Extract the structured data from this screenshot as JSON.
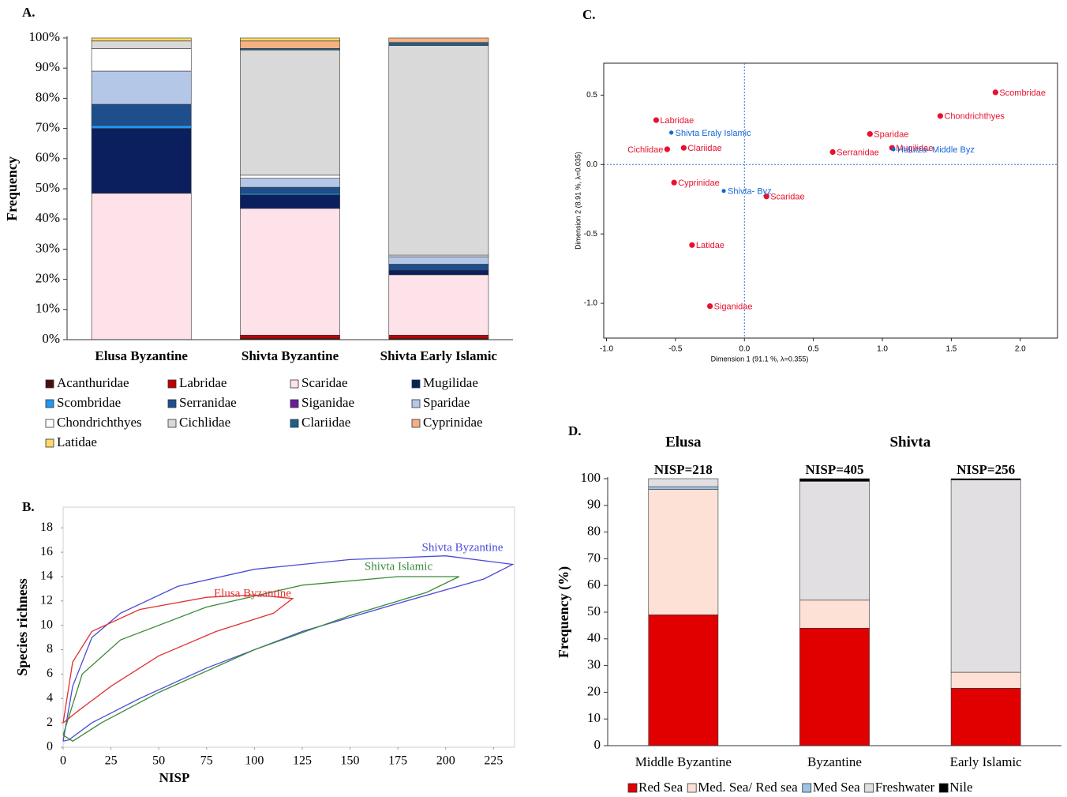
{
  "chart_data": [
    {
      "type": "bar",
      "stacked": true,
      "panel": "A.",
      "y_label": "Frequency",
      "categories": [
        "Elusa Byzantine",
        "Shivta Byzantine",
        "Shivta Early Islamic"
      ],
      "series": [
        {
          "name": "Acanthuridae",
          "color": "#4a0d0d",
          "values": [
            0,
            0.5,
            0.5
          ]
        },
        {
          "name": "Labridae",
          "color": "#c00000",
          "values": [
            0,
            1,
            1
          ]
        },
        {
          "name": "Scaridae",
          "color": "#fde2ea",
          "values": [
            48.5,
            42,
            20
          ]
        },
        {
          "name": "Mugilidae",
          "color": "#0b1f5e",
          "values": [
            21.5,
            4.5,
            1.5
          ]
        },
        {
          "name": "Scombridae",
          "color": "#2196f3",
          "values": [
            1,
            0.5,
            0
          ]
        },
        {
          "name": "Serranidae",
          "color": "#1f4e8c",
          "values": [
            7,
            2,
            2
          ]
        },
        {
          "name": "Siganidae",
          "color": "#6a1b9a",
          "values": [
            0,
            0,
            0
          ]
        },
        {
          "name": "Sparidae",
          "color": "#b4c7e7",
          "values": [
            11,
            3,
            2.5
          ]
        },
        {
          "name": "Chondrichthyes",
          "color": "#ffffff",
          "values": [
            7.5,
            1,
            0.5
          ]
        },
        {
          "name": "Cichlidae",
          "color": "#d9d9d9",
          "values": [
            2.5,
            41.5,
            69.5
          ]
        },
        {
          "name": "Clariidae",
          "color": "#1d5f8a",
          "values": [
            0,
            0.5,
            1
          ]
        },
        {
          "name": "Cyprinidae",
          "color": "#f4b183",
          "values": [
            0,
            2.5,
            1.5
          ]
        },
        {
          "name": "Latidae",
          "color": "#ffd966",
          "values": [
            1,
            1,
            0
          ]
        }
      ],
      "ylim": [
        0,
        100
      ],
      "yticks": [
        {
          "value": 0,
          "label": "0%"
        },
        {
          "value": 10,
          "label": "10%"
        },
        {
          "value": 20,
          "label": "20%"
        },
        {
          "value": 30,
          "label": "30%"
        },
        {
          "value": 40,
          "label": "40%"
        },
        {
          "value": 50,
          "label": "50%"
        },
        {
          "value": 60,
          "label": "60%"
        },
        {
          "value": 70,
          "label": "70%"
        },
        {
          "value": 80,
          "label": "80%"
        },
        {
          "value": 90,
          "label": "90%"
        },
        {
          "value": 100,
          "label": "100%"
        }
      ]
    },
    {
      "type": "line",
      "panel": "B.",
      "x_label": "NISP",
      "y_label": "Species richness",
      "xlim": [
        0,
        236
      ],
      "ylim": [
        0,
        19.7
      ],
      "xticks": [
        0,
        25,
        50,
        75,
        100,
        125,
        150,
        175,
        200,
        225
      ],
      "yticks": [
        0,
        2,
        4,
        6,
        8,
        10,
        12,
        14,
        16,
        18
      ],
      "series": [
        {
          "name": "Shivta Byzantine",
          "color": "#4a4ad6",
          "x": [
            0,
            5,
            15,
            30,
            60,
            100,
            150,
            200,
            235,
            220,
            175,
            125,
            75,
            40,
            15,
            3,
            0
          ],
          "values": [
            0.5,
            5,
            9,
            11,
            13.2,
            14.6,
            15.4,
            15.7,
            15,
            13.8,
            11.8,
            9.5,
            6.5,
            4,
            2,
            0.6,
            0.5
          ]
        },
        {
          "name": "Shivta Islamic",
          "color": "#3a8a3a",
          "x": [
            0,
            10,
            30,
            75,
            125,
            175,
            207,
            190,
            150,
            100,
            50,
            20,
            5,
            0
          ],
          "values": [
            1,
            6,
            8.8,
            11.5,
            13.3,
            14,
            14,
            12.7,
            10.8,
            8,
            4.5,
            2,
            0.5,
            1
          ]
        },
        {
          "name": "Elusa Byzantine",
          "color": "#e03030",
          "x": [
            0,
            5,
            15,
            40,
            75,
            100,
            120,
            110,
            80,
            50,
            25,
            8,
            0
          ],
          "values": [
            2,
            7,
            9.5,
            11.3,
            12.3,
            12.5,
            12.2,
            11,
            9.5,
            7.5,
            5,
            3,
            2
          ]
        }
      ]
    },
    {
      "type": "scatter",
      "panel": "C.",
      "x_label": "Dimension 1  (91.1 %, λ=0.355)",
      "y_label": "Dimension 2 (8.91 %, λ=0.035)",
      "xlim": [
        -1.02,
        2.27
      ],
      "ylim": [
        -1.25,
        0.73
      ],
      "xticks": [
        {
          "value": -1,
          "label": "-1.0"
        },
        -0.5,
        {
          "value": 0,
          "label": "0.0"
        },
        0.5,
        {
          "value": 1,
          "label": "1.0"
        },
        1.5,
        {
          "value": 2,
          "label": "2.0"
        }
      ],
      "yticks": [
        0.5,
        {
          "value": 0,
          "label": "0.0"
        },
        -0.5,
        {
          "value": -1,
          "label": "-1.0"
        }
      ],
      "zero_lines": true,
      "series": [
        {
          "color": "#e8112d",
          "labels": [
            "Scombridae",
            "Chondrichthyes",
            "Labridae",
            "Sparidae",
            "Mugilidae",
            "Cichlidae",
            "Clariidae",
            "Serranidae",
            "Cyprinidae",
            "Scaridae",
            "Latidae",
            "Siganidae"
          ],
          "x": [
            1.82,
            1.42,
            -0.64,
            0.91,
            1.07,
            -0.56,
            -0.44,
            0.64,
            -0.51,
            0.16,
            -0.38,
            -0.25
          ],
          "values": [
            0.52,
            0.35,
            0.32,
            0.22,
            0.12,
            0.11,
            0.12,
            0.09,
            -0.13,
            -0.23,
            -0.58,
            -1.02
          ]
        },
        {
          "color": "#1565d8",
          "labels": [
            "Shivta Eraly Islamic",
            "Halutza- Middle Byz",
            "Shivta- Byz"
          ],
          "x": [
            -0.53,
            1.08,
            -0.15
          ],
          "values": [
            0.23,
            0.11,
            -0.19
          ]
        }
      ]
    },
    {
      "type": "bar",
      "stacked": true,
      "panel": "D.",
      "y_label": "Frequency (%)",
      "groups": [
        {
          "label": "Elusa",
          "span": 1
        },
        {
          "label": "Shivta",
          "span": 2
        }
      ],
      "annotations": [
        "NISP=218",
        "NISP=405",
        "NISP=256"
      ],
      "categories": [
        "Middle Byzantine",
        "Byzantine",
        "Early Islamic"
      ],
      "series": [
        {
          "name": "Red Sea",
          "color": "#e00000",
          "values": [
            49,
            44,
            21.5
          ]
        },
        {
          "name": "Med. Sea/ Red sea",
          "color": "#fde0d6",
          "values": [
            47,
            10.5,
            6
          ]
        },
        {
          "name": "Med Sea",
          "color": "#9dc3e6",
          "values": [
            1,
            0,
            0
          ]
        },
        {
          "name": "Freshwater",
          "color": "#e2dfe2",
          "values": [
            3,
            44.5,
            72
          ]
        },
        {
          "name": "Nile",
          "color": "#000000",
          "values": [
            0,
            1,
            0.5
          ]
        }
      ],
      "ylim": [
        0,
        100
      ],
      "yticks": [
        0,
        10,
        20,
        30,
        40,
        50,
        60,
        70,
        80,
        90,
        100
      ]
    }
  ]
}
